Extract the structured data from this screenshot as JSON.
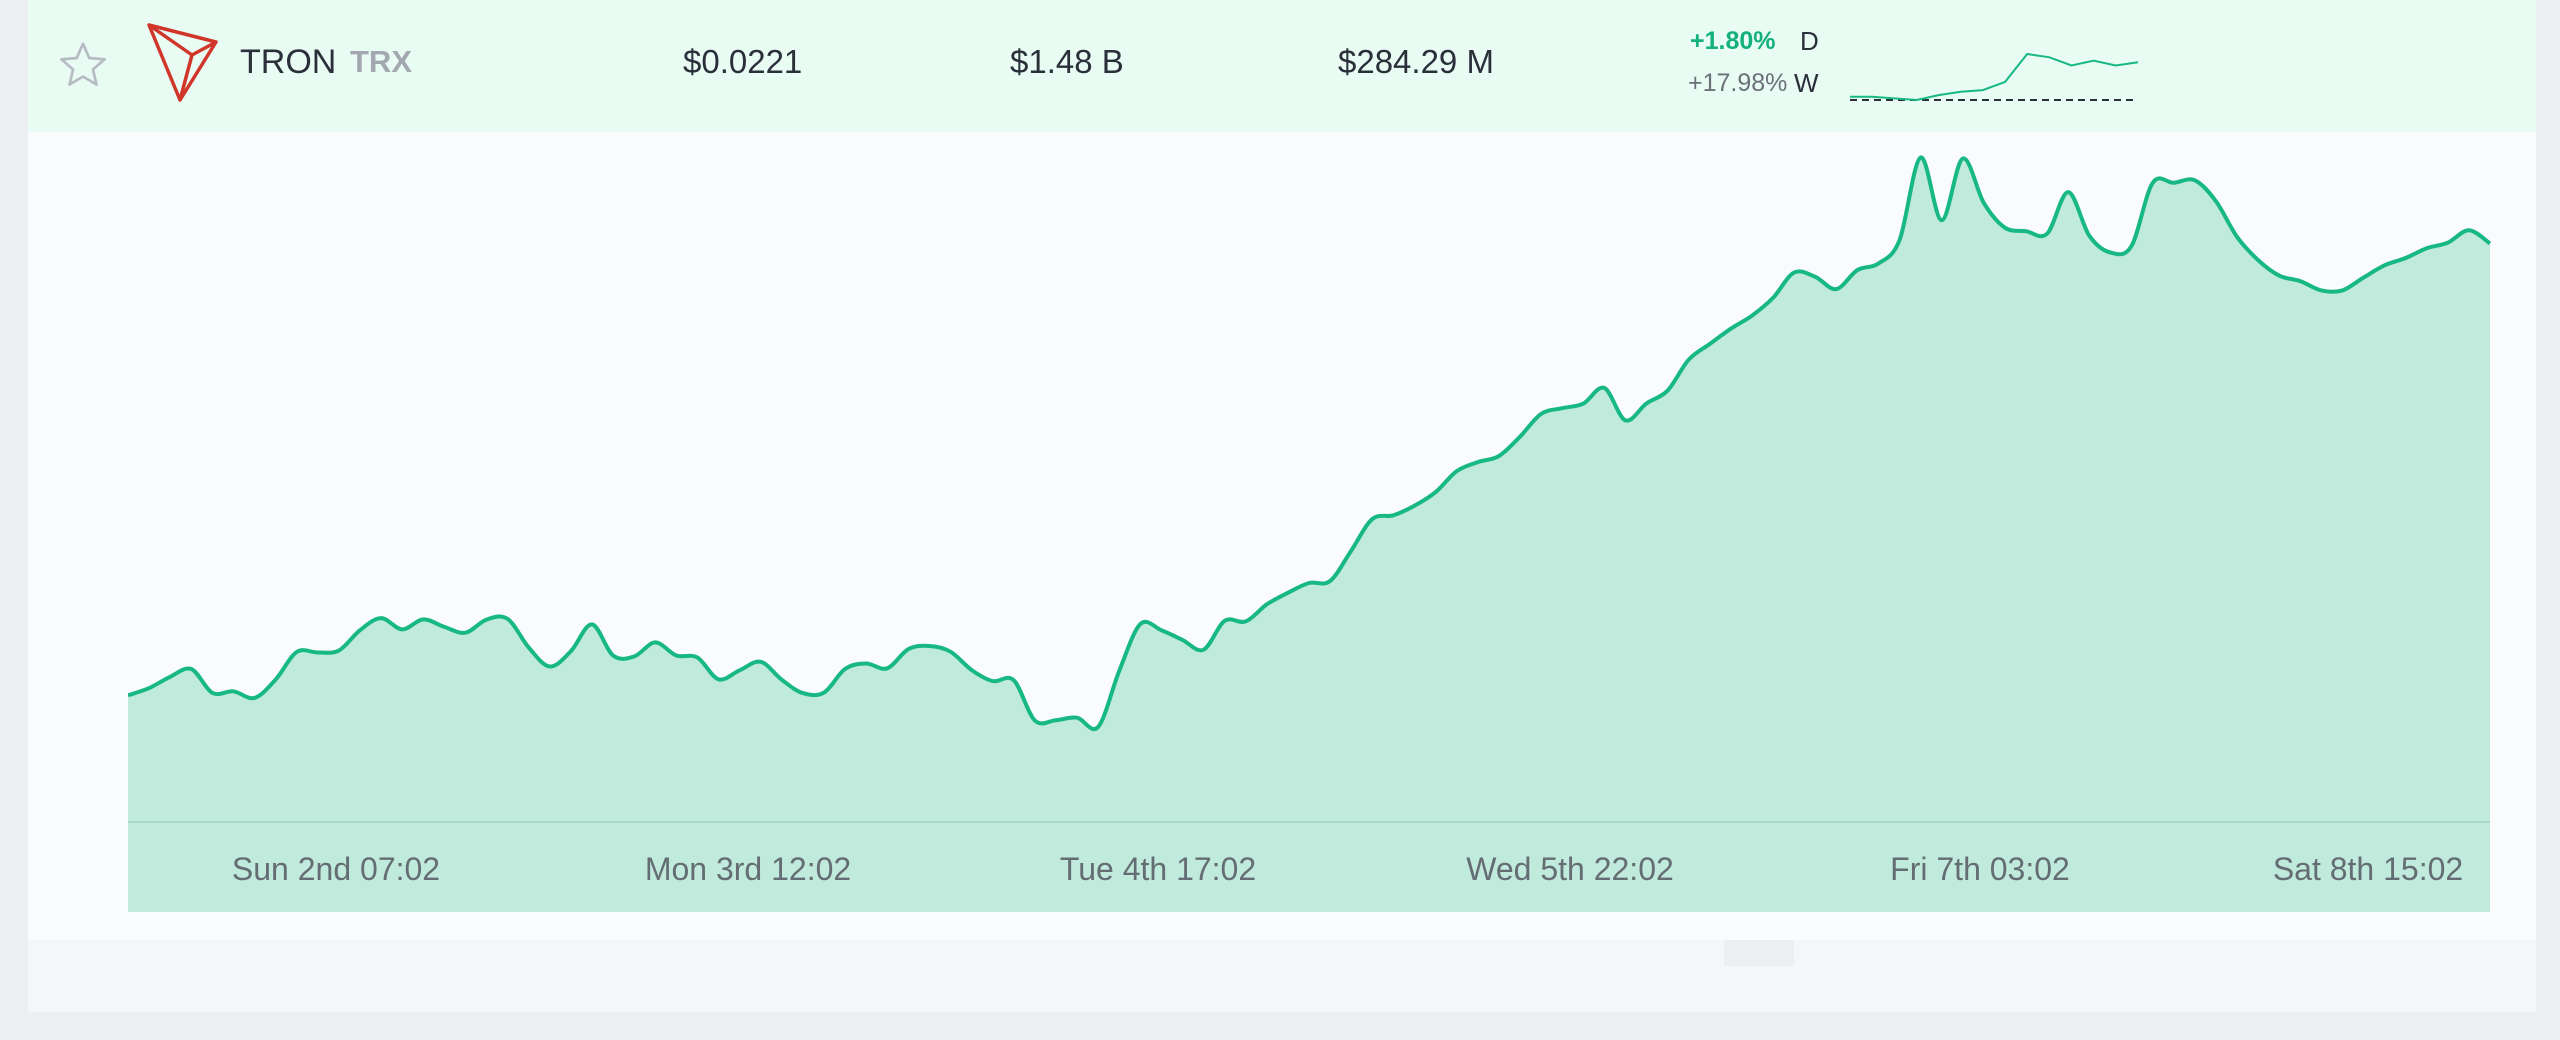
{
  "coin": {
    "name": "TRON",
    "symbol": "TRX",
    "price": "$0.0221",
    "market_cap": "$1.48 B",
    "volume": "$284.29 M",
    "change_day": "+1.80%",
    "change_day_label": "D",
    "change_week": "+17.98%",
    "change_week_label": "W",
    "logo_color": "#d1362a"
  },
  "icons": {
    "favorite": "star-icon",
    "logo": "tron-logo-icon"
  },
  "colors": {
    "row_background": "#e8fcf4",
    "accent": "#14b07e",
    "area_fill": "#c0eadb",
    "line": "#17b884"
  },
  "sparkline": {
    "values": [
      0.02,
      0.02,
      0.0199,
      0.0198,
      0.0201,
      0.0203,
      0.0204,
      0.0209,
      0.0226,
      0.0224,
      0.0219,
      0.0222,
      0.0219,
      0.0221
    ]
  },
  "chart_data": {
    "type": "area",
    "x_ticks": [
      "Sun 2nd 07:02",
      "Mon 3rd 12:02",
      "Tue 4th 17:02",
      "Wed 5th 22:02",
      "Fri 7th 03:02",
      "Sat 8th 15:02"
    ],
    "values": [
      50.5,
      53.4,
      57.9,
      61.0,
      51.5,
      52.1,
      49.5,
      56.8,
      67.8,
      67.6,
      68.4,
      76.5,
      81.3,
      76.8,
      80.8,
      77.8,
      75.5,
      80.7,
      81.0,
      69.6,
      62.0,
      68.1,
      78.8,
      66.4,
      66.0,
      71.6,
      66.4,
      65.6,
      56.9,
      60.5,
      63.9,
      56.7,
      51.4,
      51.6,
      61.0,
      63.2,
      61.3,
      68.9,
      70.2,
      67.9,
      60.6,
      56.2,
      56.5,
      40.5,
      40.6,
      41.6,
      37.9,
      60.2,
      78.9,
      76.5,
      72.6,
      68.7,
      80.2,
      80.0,
      86.8,
      91.4,
      95.3,
      96.1,
      108.2,
      120.8,
      122.3,
      126.1,
      131.5,
      139.9,
      143.5,
      145.9,
      153.6,
      162.7,
      165.0,
      166.8,
      173.1,
      160.2,
      166.9,
      172.0,
      184.3,
      190.6,
      196.7,
      201.9,
      209.0,
      219.1,
      217.4,
      212.5,
      220.1,
      222.7,
      232.0,
      265.0,
      240.0,
      264.6,
      246.8,
      237.0,
      235.6,
      234.6,
      251.2,
      233.8,
      227.1,
      229.7,
      254.8,
      254.9,
      255.9,
      247.6,
      233.4,
      224.1,
      217.9,
      215.7,
      212.0,
      212.0,
      217.1,
      222.0,
      224.9,
      228.8,
      231.0,
      236.0,
      230.7
    ],
    "ylim": [
      0,
      260
    ],
    "grid": false,
    "baseline": true
  }
}
